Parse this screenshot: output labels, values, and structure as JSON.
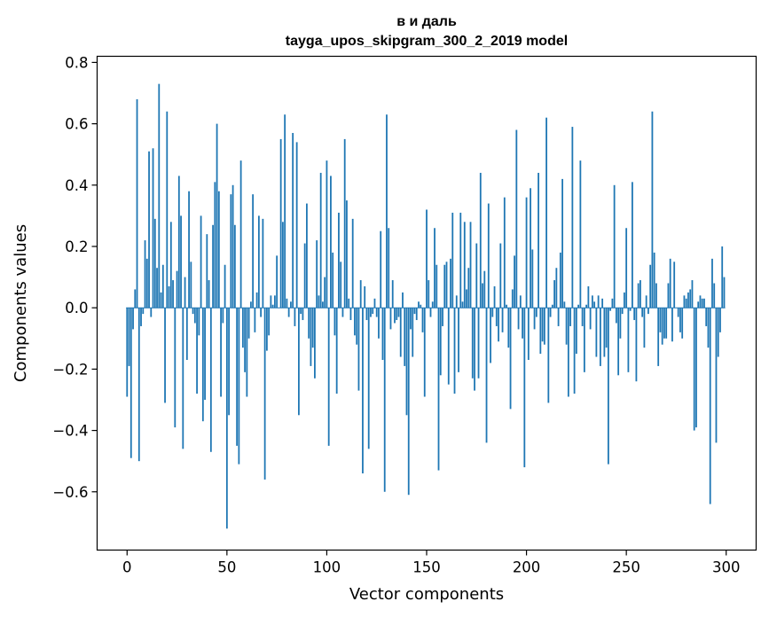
{
  "chart_data": {
    "type": "bar",
    "title_line1": "в и даль",
    "title_line2": "tayga_upos_skipgram_300_2_2019 model",
    "xlabel": "Vector components",
    "ylabel": "Components values",
    "xlim": [
      -15,
      315
    ],
    "ylim": [
      -0.79,
      0.82
    ],
    "xticks": [
      0,
      50,
      100,
      150,
      200,
      250,
      300
    ],
    "xtick_labels": [
      "0",
      "50",
      "100",
      "150",
      "200",
      "250",
      "300"
    ],
    "yticks": [
      -0.6,
      -0.4,
      -0.2,
      0.0,
      0.2,
      0.4,
      0.6,
      0.8
    ],
    "ytick_labels": [
      "−0.6",
      "−0.4",
      "−0.2",
      "0.0",
      "0.2",
      "0.4",
      "0.6",
      "0.8"
    ],
    "bar_color": "#1f77b4",
    "grid": false,
    "values": [
      -0.29,
      -0.19,
      -0.49,
      -0.07,
      0.06,
      0.68,
      -0.5,
      -0.06,
      -0.02,
      0.22,
      0.16,
      0.51,
      -0.03,
      0.52,
      0.29,
      0.13,
      0.73,
      0.05,
      0.14,
      -0.31,
      0.64,
      0.07,
      0.28,
      0.09,
      -0.39,
      0.12,
      0.43,
      0.3,
      -0.46,
      0.1,
      -0.17,
      0.38,
      0.15,
      -0.02,
      -0.05,
      -0.28,
      -0.09,
      0.3,
      -0.37,
      -0.3,
      0.24,
      0.09,
      -0.47,
      0.27,
      0.41,
      0.6,
      0.38,
      -0.29,
      -0.05,
      0.14,
      -0.72,
      -0.35,
      0.37,
      0.4,
      0.27,
      -0.45,
      -0.51,
      0.48,
      -0.13,
      -0.21,
      -0.29,
      -0.1,
      0.02,
      0.37,
      -0.08,
      0.05,
      0.3,
      -0.03,
      0.29,
      -0.56,
      -0.14,
      -0.09,
      0.04,
      0.01,
      0.04,
      0.17,
      0.0,
      0.55,
      0.28,
      0.63,
      0.03,
      -0.03,
      0.02,
      0.57,
      -0.06,
      0.54,
      -0.35,
      -0.02,
      -0.04,
      0.21,
      0.34,
      -0.1,
      -0.19,
      -0.13,
      -0.23,
      0.22,
      0.04,
      0.44,
      0.02,
      0.1,
      0.48,
      -0.45,
      0.43,
      0.18,
      -0.09,
      -0.28,
      0.31,
      0.15,
      -0.03,
      0.55,
      0.35,
      0.03,
      -0.04,
      0.29,
      -0.09,
      -0.12,
      -0.27,
      0.09,
      -0.54,
      0.07,
      -0.04,
      -0.46,
      -0.03,
      -0.02,
      0.03,
      -0.03,
      -0.1,
      0.25,
      -0.17,
      -0.6,
      0.63,
      0.26,
      -0.07,
      0.09,
      -0.05,
      -0.04,
      -0.03,
      -0.16,
      0.05,
      -0.19,
      -0.35,
      -0.61,
      -0.07,
      -0.16,
      -0.02,
      -0.04,
      0.02,
      0.01,
      -0.08,
      -0.29,
      0.32,
      0.09,
      -0.03,
      0.02,
      0.26,
      0.14,
      -0.53,
      -0.22,
      -0.06,
      0.14,
      0.15,
      -0.25,
      0.16,
      0.31,
      -0.28,
      0.04,
      -0.21,
      0.31,
      0.02,
      0.28,
      0.06,
      0.13,
      0.28,
      -0.23,
      -0.27,
      0.21,
      -0.23,
      0.44,
      0.08,
      0.12,
      -0.44,
      0.34,
      -0.18,
      -0.03,
      0.07,
      -0.06,
      -0.11,
      0.21,
      -0.08,
      0.36,
      0.01,
      -0.13,
      -0.33,
      0.06,
      0.17,
      0.58,
      -0.07,
      0.04,
      -0.1,
      -0.52,
      0.36,
      -0.17,
      0.39,
      0.19,
      -0.07,
      -0.03,
      0.44,
      -0.15,
      -0.11,
      -0.12,
      0.62,
      -0.31,
      -0.03,
      0.01,
      0.09,
      0.13,
      -0.06,
      0.18,
      0.42,
      0.02,
      -0.12,
      -0.29,
      -0.06,
      0.59,
      -0.28,
      -0.15,
      0.01,
      0.48,
      -0.06,
      -0.21,
      0.01,
      0.07,
      -0.07,
      0.04,
      0.02,
      -0.16,
      0.04,
      -0.19,
      0.03,
      -0.16,
      -0.13,
      -0.51,
      -0.01,
      0.03,
      0.4,
      -0.05,
      -0.22,
      -0.1,
      -0.02,
      0.05,
      0.26,
      -0.21,
      -0.01,
      0.41,
      -0.04,
      -0.24,
      0.08,
      0.09,
      -0.03,
      -0.13,
      0.04,
      -0.02,
      0.14,
      0.64,
      0.18,
      0.08,
      -0.19,
      -0.08,
      -0.12,
      -0.1,
      -0.1,
      0.08,
      0.16,
      -0.11,
      0.15,
      0.0,
      -0.03,
      -0.08,
      -0.1,
      0.04,
      0.03,
      0.05,
      0.06,
      0.09,
      -0.4,
      -0.39,
      0.02,
      0.04,
      0.03,
      0.03,
      -0.06,
      -0.13,
      -0.64,
      0.16,
      0.08,
      -0.44,
      -0.16,
      -0.08,
      0.2,
      0.1
    ]
  }
}
